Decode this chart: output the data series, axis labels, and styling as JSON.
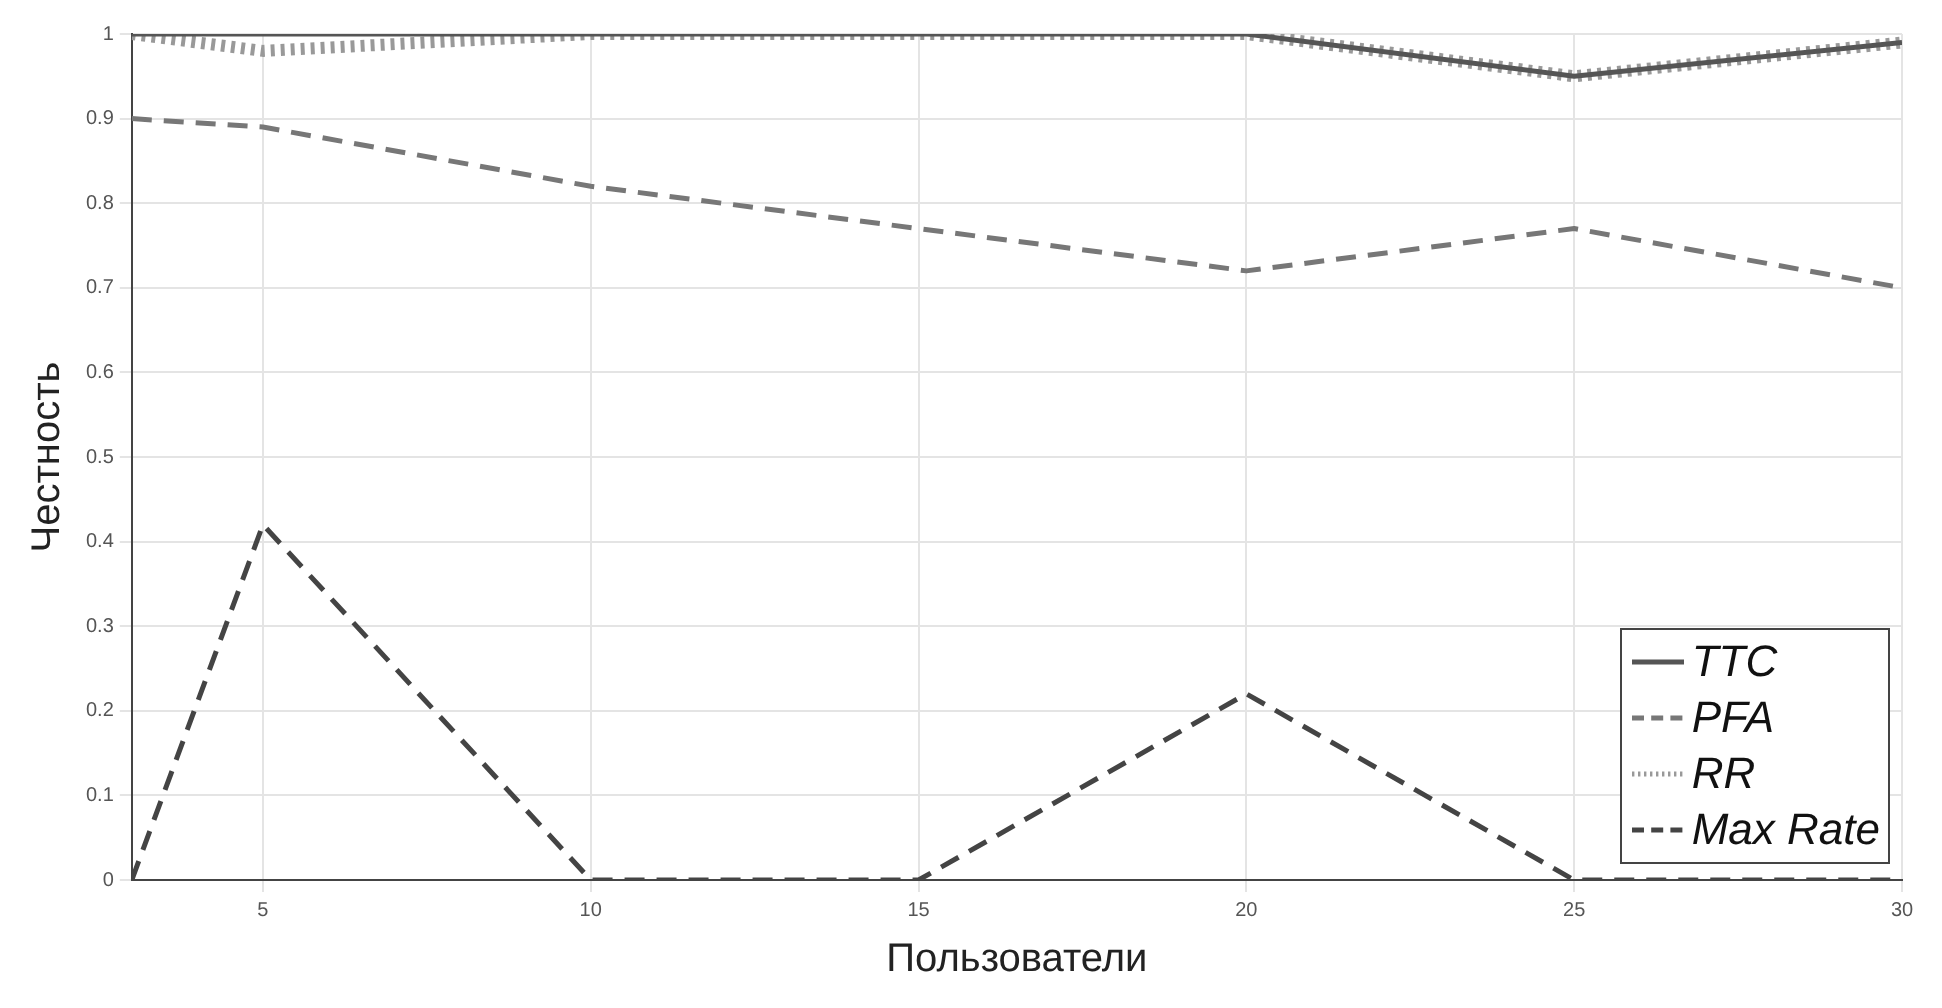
{
  "chart_data": {
    "type": "line",
    "xlabel": "Пользователи",
    "ylabel": "Честность",
    "x": [
      3,
      5,
      10,
      15,
      20,
      25,
      30
    ],
    "series": [
      {
        "name": "TTC",
        "color": "#555555",
        "line_style": "solid",
        "values": [
          1,
          1,
          1,
          1,
          1,
          0.95,
          0.99
        ]
      },
      {
        "name": "PFA",
        "color": "#777777",
        "line_style": "dashed",
        "values": [
          0.9,
          0.89,
          0.82,
          0.77,
          0.72,
          0.77,
          0.7
        ]
      },
      {
        "name": "RR",
        "color": "#999999",
        "line_style": "dotted",
        "values": [
          1,
          0.98,
          1,
          1,
          1,
          0.95,
          0.99
        ]
      },
      {
        "name": "Max Rate",
        "color": "#444444",
        "line_style": "dashed",
        "values": [
          0,
          0.42,
          0,
          0,
          0.22,
          0,
          0
        ]
      }
    ],
    "xlim": [
      3,
      30
    ],
    "xticks": [
      5,
      10,
      15,
      20,
      25,
      30
    ],
    "ylim": [
      0,
      1
    ],
    "yticks": [
      0,
      0.1,
      0.2,
      0.3,
      0.4,
      0.5,
      0.6,
      0.7,
      0.8,
      0.9,
      1
    ],
    "grid": true,
    "legend": "bottom right",
    "marker": "none"
  }
}
